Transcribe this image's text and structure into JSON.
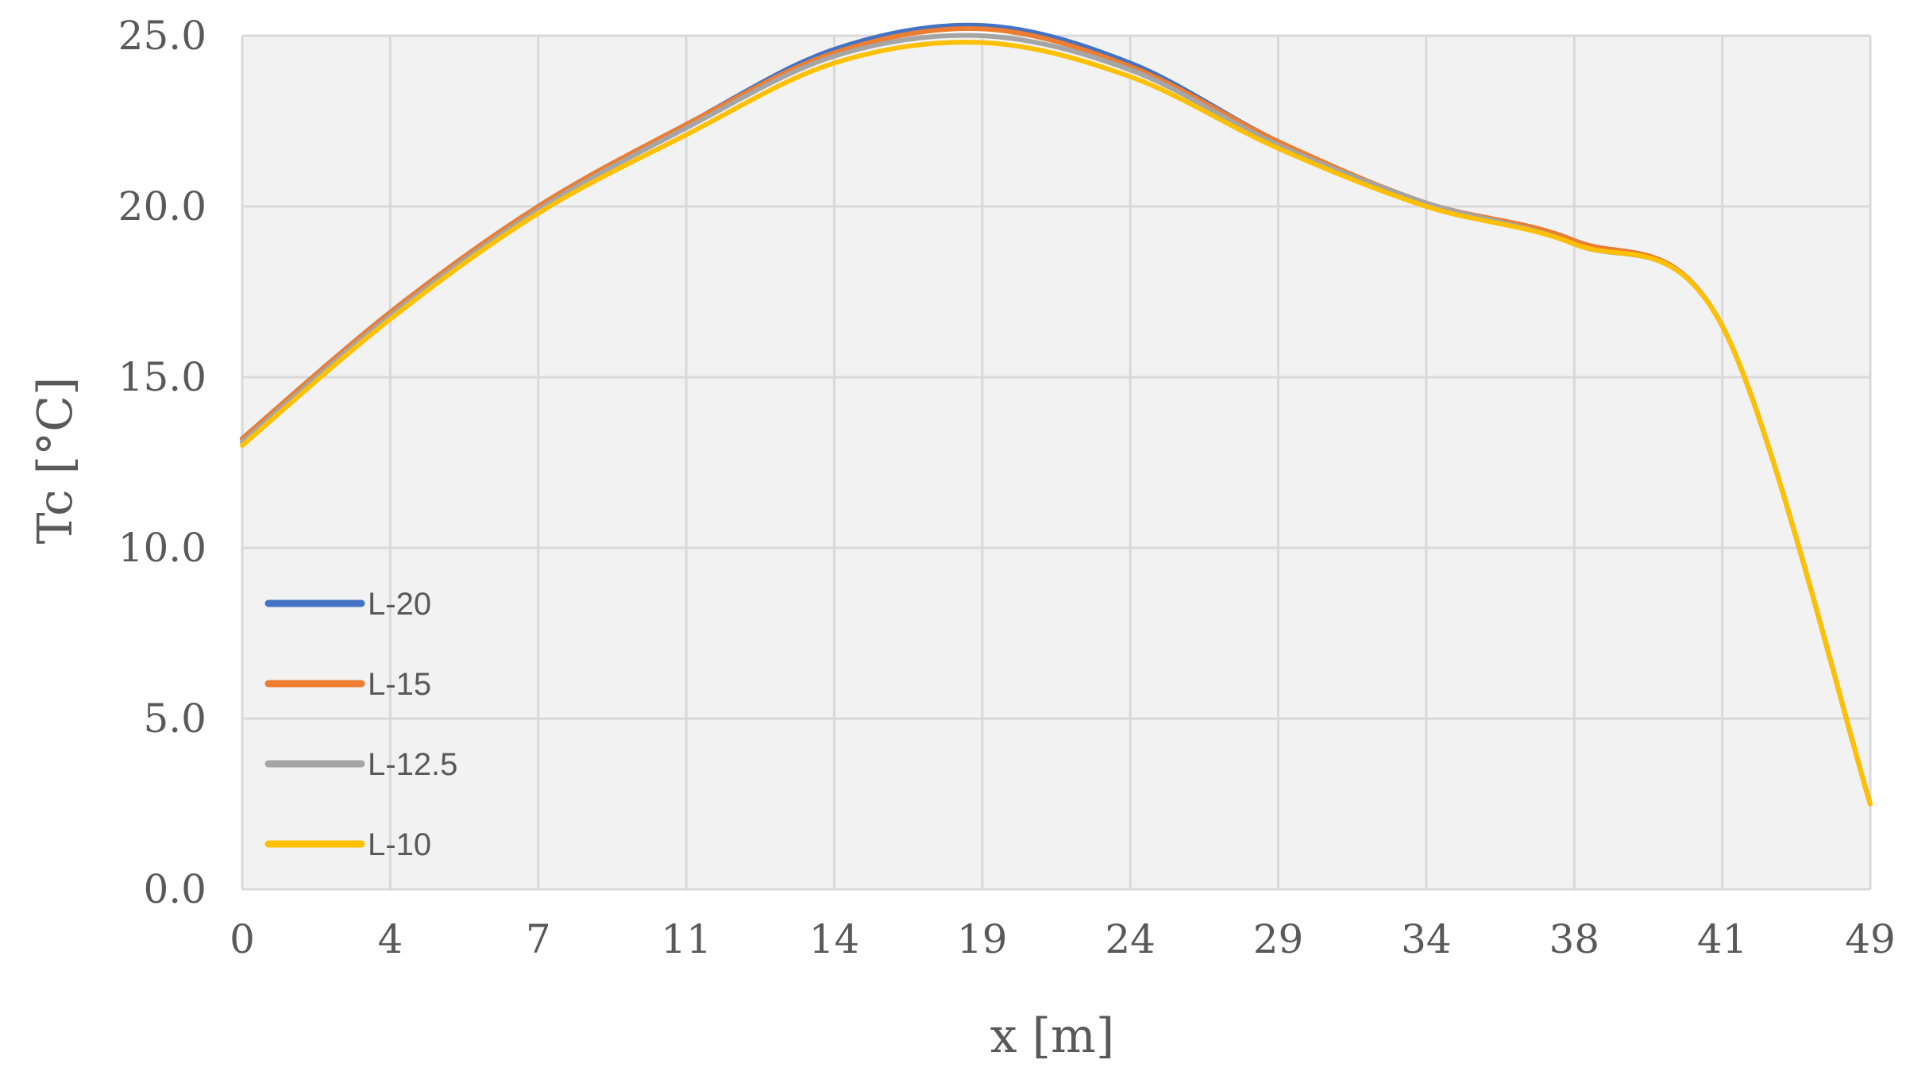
{
  "chart_data": {
    "type": "line",
    "xlabel": "x [m]",
    "ylabel": "Tc [°C]",
    "x_tick_labels": [
      "0",
      "4",
      "7",
      "11",
      "14",
      "19",
      "24",
      "29",
      "34",
      "38",
      "41",
      "49"
    ],
    "y_tick_labels": [
      "0.0",
      "5.0",
      "10.0",
      "15.0",
      "20.0",
      "25.0"
    ],
    "ylim": [
      0,
      25
    ],
    "grid": true,
    "legend_position": "lower-left",
    "series": [
      {
        "name": "L-20",
        "color": "#4472C4",
        "values": [
          13.2,
          16.9,
          20.0,
          22.4,
          24.6,
          25.3,
          24.2,
          21.9,
          20.1,
          19.0,
          16.5,
          2.5
        ]
      },
      {
        "name": "L-15",
        "color": "#ED7D31",
        "values": [
          13.2,
          16.9,
          20.0,
          22.4,
          24.5,
          25.2,
          24.1,
          21.9,
          20.1,
          19.0,
          16.5,
          2.5
        ]
      },
      {
        "name": "L-12.5",
        "color": "#A5A5A5",
        "values": [
          13.1,
          16.8,
          19.9,
          22.3,
          24.4,
          25.0,
          24.0,
          21.8,
          20.1,
          18.9,
          16.5,
          2.5
        ]
      },
      {
        "name": "L-10",
        "color": "#FFC000",
        "values": [
          13.0,
          16.7,
          19.8,
          22.1,
          24.2,
          24.8,
          23.8,
          21.7,
          20.0,
          18.9,
          16.5,
          2.5
        ]
      }
    ]
  }
}
